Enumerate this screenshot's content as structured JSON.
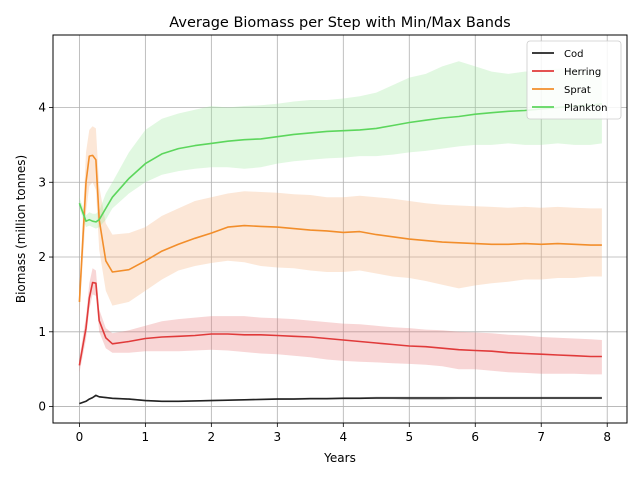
{
  "chart_data": {
    "type": "line",
    "title": "Average Biomass per Step with Min/Max Bands",
    "xlabel": "Years",
    "ylabel": "Biomass (million tonnes)",
    "xlim": [
      -0.4,
      8.3
    ],
    "ylim": [
      -0.22,
      4.97
    ],
    "xticks": [
      0,
      1,
      2,
      3,
      4,
      5,
      6,
      7,
      8
    ],
    "yticks": [
      0,
      1,
      2,
      3,
      4
    ],
    "grid": true,
    "legend_position": "top-right",
    "x": [
      0,
      0.1,
      0.15,
      0.2,
      0.25,
      0.3,
      0.4,
      0.5,
      0.75,
      1.0,
      1.25,
      1.5,
      1.75,
      2.0,
      2.25,
      2.5,
      2.75,
      3.0,
      3.25,
      3.5,
      3.75,
      4.0,
      4.25,
      4.5,
      4.75,
      5.0,
      5.25,
      5.5,
      5.75,
      6.0,
      6.25,
      6.5,
      6.75,
      7.0,
      7.25,
      7.5,
      7.75,
      7.92
    ],
    "series": [
      {
        "name": "Cod",
        "color": "#222222",
        "band_color": "#222222",
        "values": [
          0.04,
          0.07,
          0.1,
          0.12,
          0.15,
          0.13,
          0.12,
          0.11,
          0.1,
          0.08,
          0.07,
          0.07,
          0.075,
          0.08,
          0.085,
          0.09,
          0.095,
          0.1,
          0.1,
          0.105,
          0.105,
          0.11,
          0.11,
          0.115,
          0.115,
          0.115,
          0.115,
          0.115,
          0.115,
          0.115,
          0.115,
          0.115,
          0.115,
          0.115,
          0.115,
          0.115,
          0.115,
          0.115
        ],
        "min": [
          0.04,
          0.06,
          0.09,
          0.11,
          0.13,
          0.12,
          0.11,
          0.1,
          0.09,
          0.07,
          0.065,
          0.065,
          0.07,
          0.075,
          0.08,
          0.085,
          0.09,
          0.09,
          0.095,
          0.095,
          0.1,
          0.1,
          0.1,
          0.1,
          0.1,
          0.09,
          0.09,
          0.09,
          0.1,
          0.1,
          0.1,
          0.1,
          0.1,
          0.1,
          0.1,
          0.1,
          0.1,
          0.1
        ],
        "max": [
          0.05,
          0.08,
          0.11,
          0.13,
          0.16,
          0.14,
          0.13,
          0.12,
          0.11,
          0.09,
          0.08,
          0.08,
          0.085,
          0.09,
          0.095,
          0.1,
          0.11,
          0.115,
          0.115,
          0.12,
          0.12,
          0.125,
          0.125,
          0.13,
          0.13,
          0.13,
          0.13,
          0.13,
          0.13,
          0.13,
          0.13,
          0.13,
          0.13,
          0.13,
          0.13,
          0.13,
          0.13,
          0.13
        ]
      },
      {
        "name": "Herring",
        "color": "#e03a3a",
        "band_color": "#e87878",
        "values": [
          0.55,
          1.05,
          1.45,
          1.66,
          1.65,
          1.15,
          0.92,
          0.84,
          0.87,
          0.91,
          0.93,
          0.94,
          0.95,
          0.97,
          0.97,
          0.96,
          0.96,
          0.95,
          0.94,
          0.93,
          0.91,
          0.89,
          0.87,
          0.85,
          0.83,
          0.81,
          0.8,
          0.78,
          0.76,
          0.75,
          0.74,
          0.72,
          0.71,
          0.7,
          0.69,
          0.68,
          0.67,
          0.67
        ],
        "min": [
          0.45,
          0.9,
          1.3,
          1.5,
          1.48,
          1.0,
          0.78,
          0.72,
          0.72,
          0.74,
          0.74,
          0.74,
          0.75,
          0.76,
          0.75,
          0.73,
          0.71,
          0.7,
          0.68,
          0.66,
          0.63,
          0.61,
          0.6,
          0.59,
          0.58,
          0.57,
          0.56,
          0.54,
          0.5,
          0.5,
          0.48,
          0.46,
          0.45,
          0.44,
          0.44,
          0.44,
          0.43,
          0.43
        ],
        "max": [
          0.65,
          1.2,
          1.65,
          1.85,
          1.82,
          1.3,
          1.05,
          0.98,
          1.02,
          1.08,
          1.14,
          1.17,
          1.19,
          1.21,
          1.21,
          1.21,
          1.19,
          1.18,
          1.17,
          1.15,
          1.13,
          1.11,
          1.1,
          1.08,
          1.06,
          1.05,
          1.03,
          1.02,
          1.0,
          0.99,
          0.98,
          0.96,
          0.95,
          0.93,
          0.92,
          0.91,
          0.9,
          0.89
        ]
      },
      {
        "name": "Sprat",
        "color": "#f28e2b",
        "band_color": "#f5b07a",
        "values": [
          1.4,
          3.0,
          3.35,
          3.36,
          3.3,
          2.5,
          1.95,
          1.8,
          1.83,
          1.95,
          2.08,
          2.17,
          2.25,
          2.32,
          2.4,
          2.42,
          2.41,
          2.4,
          2.38,
          2.36,
          2.35,
          2.33,
          2.34,
          2.3,
          2.27,
          2.24,
          2.22,
          2.2,
          2.19,
          2.18,
          2.17,
          2.17,
          2.18,
          2.17,
          2.18,
          2.17,
          2.16,
          2.16
        ],
        "min": [
          1.2,
          2.6,
          2.95,
          3.0,
          2.9,
          2.1,
          1.55,
          1.35,
          1.4,
          1.55,
          1.7,
          1.82,
          1.88,
          1.92,
          1.95,
          1.93,
          1.88,
          1.86,
          1.85,
          1.82,
          1.8,
          1.8,
          1.82,
          1.78,
          1.74,
          1.72,
          1.68,
          1.63,
          1.58,
          1.62,
          1.65,
          1.67,
          1.7,
          1.7,
          1.72,
          1.72,
          1.74,
          1.74
        ],
        "max": [
          1.55,
          3.4,
          3.7,
          3.75,
          3.72,
          2.95,
          2.45,
          2.3,
          2.32,
          2.4,
          2.55,
          2.65,
          2.75,
          2.8,
          2.85,
          2.88,
          2.87,
          2.86,
          2.84,
          2.83,
          2.8,
          2.8,
          2.82,
          2.8,
          2.78,
          2.75,
          2.72,
          2.7,
          2.69,
          2.68,
          2.67,
          2.66,
          2.67,
          2.66,
          2.67,
          2.66,
          2.65,
          2.65
        ]
      },
      {
        "name": "Plankton",
        "color": "#5cd65c",
        "band_color": "#9be89b",
        "values": [
          2.72,
          2.48,
          2.5,
          2.48,
          2.47,
          2.5,
          2.65,
          2.8,
          3.05,
          3.25,
          3.38,
          3.45,
          3.49,
          3.52,
          3.55,
          3.57,
          3.58,
          3.61,
          3.64,
          3.66,
          3.68,
          3.69,
          3.7,
          3.72,
          3.76,
          3.8,
          3.83,
          3.86,
          3.88,
          3.91,
          3.93,
          3.95,
          3.96,
          3.98,
          4.0,
          4.02,
          4.03,
          4.05
        ],
        "min": [
          2.65,
          2.4,
          2.42,
          2.4,
          2.38,
          2.4,
          2.5,
          2.65,
          2.85,
          3.0,
          3.1,
          3.15,
          3.18,
          3.2,
          3.2,
          3.18,
          3.2,
          3.25,
          3.28,
          3.3,
          3.32,
          3.33,
          3.35,
          3.35,
          3.37,
          3.4,
          3.42,
          3.45,
          3.48,
          3.5,
          3.5,
          3.52,
          3.5,
          3.5,
          3.52,
          3.5,
          3.5,
          3.52
        ],
        "max": [
          2.8,
          2.56,
          2.6,
          2.58,
          2.58,
          2.62,
          2.85,
          3.0,
          3.4,
          3.7,
          3.85,
          3.92,
          3.97,
          4.02,
          4.0,
          4.02,
          4.03,
          4.05,
          4.08,
          4.1,
          4.1,
          4.12,
          4.15,
          4.2,
          4.3,
          4.4,
          4.45,
          4.55,
          4.62,
          4.55,
          4.48,
          4.45,
          4.48,
          4.5,
          4.52,
          4.52,
          4.5,
          4.5
        ]
      }
    ]
  }
}
